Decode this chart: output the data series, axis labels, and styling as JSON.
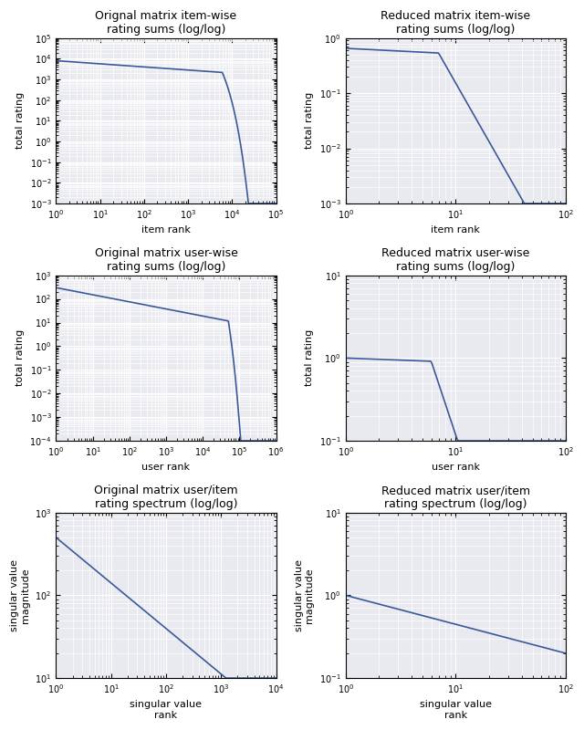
{
  "plots": [
    {
      "title": "Orignal matrix item-wise\nrating sums (log/log)",
      "xlabel": "item rank",
      "ylabel": "total rating",
      "xlim": [
        1,
        100000.0
      ],
      "ylim": [
        0.001,
        100000.0
      ],
      "n_points": 500,
      "curve_type": "item_orig"
    },
    {
      "title": "Reduced matrix item-wise\nrating sums (log/log)",
      "xlabel": "item rank",
      "ylabel": "total rating",
      "xlim": [
        1,
        100.0
      ],
      "ylim": [
        0.001,
        1
      ],
      "n_points": 200,
      "curve_type": "item_reduced"
    },
    {
      "title": "Original matrix user-wise\nrating sums (log/log)",
      "xlabel": "user rank",
      "ylabel": "total rating",
      "xlim": [
        1,
        1000000.0
      ],
      "ylim": [
        0.0001,
        1000.0
      ],
      "n_points": 500,
      "curve_type": "user_orig"
    },
    {
      "title": "Reduced matrix user-wise\nrating sums (log/log)",
      "xlabel": "user rank",
      "ylabel": "total rating",
      "xlim": [
        1,
        100.0
      ],
      "ylim": [
        0.1,
        10.0
      ],
      "n_points": 200,
      "curve_type": "user_reduced"
    },
    {
      "title": "Original matrix user/item\nrating spectrum (log/log)",
      "xlabel": "singular value\nrank",
      "ylabel": "singular value\nmagnitude",
      "xlim": [
        1,
        10000.0
      ],
      "ylim": [
        10,
        1000.0
      ],
      "n_points": 400,
      "curve_type": "sv_orig"
    },
    {
      "title": "Reduced matrix user/item\nrating spectrum (log/log)",
      "xlabel": "singular value\nrank",
      "ylabel": "singular value\nmagnitude",
      "xlim": [
        1,
        100.0
      ],
      "ylim": [
        0.1,
        10.0
      ],
      "n_points": 200,
      "curve_type": "sv_reduced"
    }
  ],
  "line_color": "#3b5998",
  "bg_color": "#e8eaf0",
  "grid_color": "white",
  "fig_bg": "#ffffff"
}
